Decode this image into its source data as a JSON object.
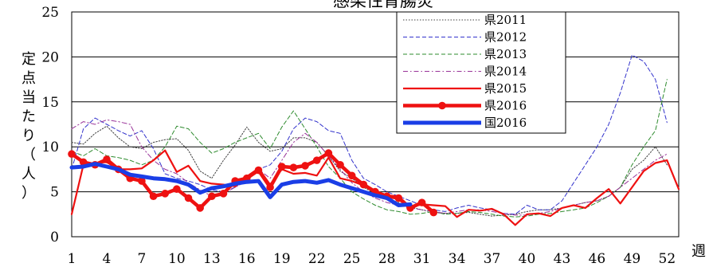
{
  "chart_data": {
    "type": "line",
    "title": "感染性胃腸炎",
    "ylabel": "定点当たり（人）",
    "xlabel": "週",
    "ylim": [
      0,
      25
    ],
    "xlim": [
      1,
      53
    ],
    "y_ticks": [
      "0",
      "5",
      "10",
      "15",
      "20",
      "25"
    ],
    "x_ticks": [
      "1",
      "4",
      "7",
      "10",
      "13",
      "16",
      "19",
      "22",
      "25",
      "28",
      "31",
      "34",
      "37",
      "40",
      "43",
      "46",
      "49",
      "52"
    ],
    "grid": "horizontal",
    "legend_position": "top-right",
    "series": [
      {
        "name": "県2011",
        "color": "#404040",
        "style": "dotted",
        "x": [
          1,
          2,
          3,
          4,
          5,
          6,
          7,
          8,
          9,
          10,
          11,
          12,
          13,
          14,
          15,
          16,
          17,
          18,
          19,
          20,
          21,
          22,
          23,
          24,
          25,
          26,
          27,
          28,
          29,
          30,
          31,
          32,
          33,
          34,
          35,
          36,
          37,
          38,
          39,
          40,
          41,
          42,
          43,
          44,
          45,
          46,
          47,
          48,
          49,
          50,
          51,
          52
        ],
        "values": [
          10.5,
          10.3,
          11.5,
          12.3,
          11.0,
          10.0,
          9.8,
          10.5,
          10.8,
          10.9,
          9.6,
          7.3,
          6.5,
          8.5,
          10.2,
          12.2,
          10.5,
          9.5,
          9.8,
          11.0,
          11.0,
          10.5,
          9.0,
          7.3,
          6.5,
          5.5,
          4.8,
          4.3,
          3.8,
          3.3,
          3.0,
          2.7,
          2.6,
          2.6,
          2.7,
          2.5,
          2.3,
          2.4,
          2.5,
          2.8,
          3.0,
          3.0,
          3.2,
          3.5,
          3.8,
          4.0,
          4.5,
          5.5,
          7.5,
          8.5,
          10.0,
          8.0
        ]
      },
      {
        "name": "県2012",
        "color": "#3333cc",
        "style": "dashed",
        "x": [
          1,
          2,
          3,
          4,
          5,
          6,
          7,
          8,
          9,
          10,
          11,
          12,
          13,
          14,
          15,
          16,
          17,
          18,
          19,
          20,
          21,
          22,
          23,
          24,
          25,
          26,
          27,
          28,
          29,
          30,
          31,
          32,
          33,
          34,
          35,
          36,
          37,
          38,
          39,
          40,
          41,
          42,
          43,
          44,
          45,
          46,
          47,
          48,
          49,
          50,
          51,
          52
        ],
        "values": [
          7.5,
          12.0,
          13.2,
          12.5,
          11.8,
          11.2,
          11.8,
          9.8,
          7.0,
          6.5,
          6.2,
          5.8,
          5.2,
          5.0,
          5.5,
          6.5,
          7.5,
          8.0,
          9.5,
          12.0,
          13.2,
          12.8,
          11.8,
          11.5,
          8.5,
          6.5,
          5.8,
          5.0,
          4.5,
          4.0,
          3.5,
          3.0,
          2.8,
          3.2,
          3.5,
          3.2,
          3.0,
          2.6,
          2.5,
          3.5,
          3.0,
          3.0,
          4.0,
          6.0,
          8.0,
          10.0,
          12.5,
          16.0,
          20.2,
          19.5,
          17.5,
          12.7
        ]
      },
      {
        "name": "県2013",
        "color": "#2e8b2e",
        "style": "dashed",
        "x": [
          1,
          2,
          3,
          4,
          5,
          6,
          7,
          8,
          9,
          10,
          11,
          12,
          13,
          14,
          15,
          16,
          17,
          18,
          19,
          20,
          21,
          22,
          23,
          24,
          25,
          26,
          27,
          28,
          29,
          30,
          31,
          32,
          33,
          34,
          35,
          36,
          37,
          38,
          39,
          40,
          41,
          42,
          43,
          44,
          45,
          46,
          47,
          48,
          49,
          50,
          51,
          52
        ],
        "values": [
          9.5,
          9.0,
          9.8,
          9.0,
          8.8,
          8.5,
          8.0,
          8.5,
          10.0,
          12.3,
          12.0,
          10.5,
          9.3,
          9.8,
          10.5,
          11.0,
          11.5,
          9.8,
          12.2,
          14.0,
          12.0,
          10.0,
          7.8,
          6.5,
          5.0,
          4.2,
          3.5,
          3.0,
          2.8,
          2.5,
          2.6,
          2.8,
          2.5,
          2.6,
          2.8,
          2.7,
          2.5,
          2.3,
          2.2,
          2.3,
          2.5,
          2.6,
          2.8,
          3.0,
          3.2,
          3.8,
          4.5,
          5.5,
          8.0,
          10.0,
          11.8,
          17.5
        ]
      },
      {
        "name": "県2014",
        "color": "#993399",
        "style": "dashdot",
        "x": [
          1,
          2,
          3,
          4,
          5,
          6,
          7,
          8,
          9,
          10,
          11,
          12,
          13,
          14,
          15,
          16,
          17,
          18,
          19,
          20,
          21,
          22,
          23,
          24,
          25,
          26,
          27,
          28,
          29,
          30,
          31,
          32,
          33,
          34,
          35,
          36,
          37,
          38,
          39,
          40,
          41,
          42,
          43,
          44,
          45,
          46,
          47,
          48,
          49,
          50,
          51,
          52
        ],
        "values": [
          12.0,
          12.8,
          12.5,
          13.0,
          12.8,
          12.5,
          10.0,
          8.5,
          7.5,
          7.0,
          6.0,
          5.2,
          4.5,
          4.8,
          5.5,
          6.2,
          7.5,
          6.5,
          8.5,
          10.5,
          11.5,
          10.5,
          9.0,
          7.5,
          6.0,
          5.0,
          4.3,
          3.8,
          3.5,
          3.2,
          3.0,
          2.8,
          2.6,
          2.8,
          3.0,
          3.0,
          2.8,
          2.6,
          2.4,
          2.4,
          2.6,
          2.8,
          3.2,
          3.5,
          3.8,
          4.0,
          4.5,
          5.5,
          6.5,
          7.5,
          8.5,
          9.2
        ]
      },
      {
        "name": "県2015",
        "color": "#ee1111",
        "style": "solid-thin",
        "x": [
          1,
          2,
          3,
          4,
          5,
          6,
          7,
          8,
          9,
          10,
          11,
          12,
          13,
          14,
          15,
          16,
          17,
          18,
          19,
          20,
          21,
          22,
          23,
          24,
          25,
          26,
          27,
          28,
          29,
          30,
          31,
          32,
          33,
          34,
          35,
          36,
          37,
          38,
          39,
          40,
          41,
          42,
          43,
          44,
          45,
          46,
          47,
          48,
          49,
          50,
          51,
          52,
          53
        ],
        "values": [
          2.5,
          8.0,
          8.2,
          8.3,
          7.5,
          7.5,
          7.6,
          8.5,
          9.6,
          7.2,
          7.9,
          6.2,
          5.9,
          5.8,
          5.6,
          6.7,
          7.6,
          5.8,
          7.5,
          7.0,
          7.1,
          6.8,
          8.8,
          6.5,
          6.2,
          5.7,
          5.1,
          4.6,
          4.5,
          3.3,
          3.6,
          3.5,
          3.4,
          2.2,
          3.0,
          2.9,
          3.1,
          2.5,
          1.3,
          2.5,
          2.6,
          2.3,
          3.2,
          3.5,
          3.2,
          4.3,
          5.3,
          3.7,
          5.5,
          7.3,
          8.2,
          8.5,
          5.3
        ]
      },
      {
        "name": "県2016",
        "color": "#ee1111",
        "style": "solid-thick-marker",
        "x": [
          1,
          2,
          3,
          4,
          5,
          6,
          7,
          8,
          9,
          10,
          11,
          12,
          13,
          14,
          15,
          16,
          17,
          18,
          19,
          20,
          21,
          22,
          23,
          24,
          25,
          26,
          27,
          28,
          29,
          30,
          31,
          32
        ],
        "values": [
          9.2,
          8.3,
          8.0,
          8.6,
          7.5,
          6.5,
          6.2,
          4.5,
          4.8,
          5.3,
          4.3,
          3.2,
          4.5,
          4.8,
          6.2,
          6.5,
          7.4,
          5.5,
          7.8,
          7.7,
          7.9,
          8.5,
          9.3,
          8.0,
          6.8,
          5.8,
          5.0,
          4.5,
          4.3,
          3.2,
          3.8,
          2.7
        ]
      },
      {
        "name": "国2016",
        "color": "#1a3ee6",
        "style": "solid-thick",
        "x": [
          1,
          2,
          3,
          4,
          5,
          6,
          7,
          8,
          9,
          10,
          11,
          12,
          13,
          14,
          15,
          16,
          17,
          18,
          19,
          20,
          21,
          22,
          23,
          24,
          25,
          26,
          27,
          28,
          29,
          30
        ],
        "values": [
          7.7,
          7.8,
          8.1,
          7.8,
          7.5,
          6.9,
          6.7,
          6.5,
          6.4,
          6.2,
          5.8,
          4.9,
          5.4,
          5.6,
          5.9,
          6.1,
          6.2,
          4.4,
          5.8,
          6.1,
          6.2,
          6.0,
          6.3,
          5.8,
          5.4,
          5.0,
          4.6,
          4.3,
          3.5,
          3.6
        ]
      }
    ]
  }
}
